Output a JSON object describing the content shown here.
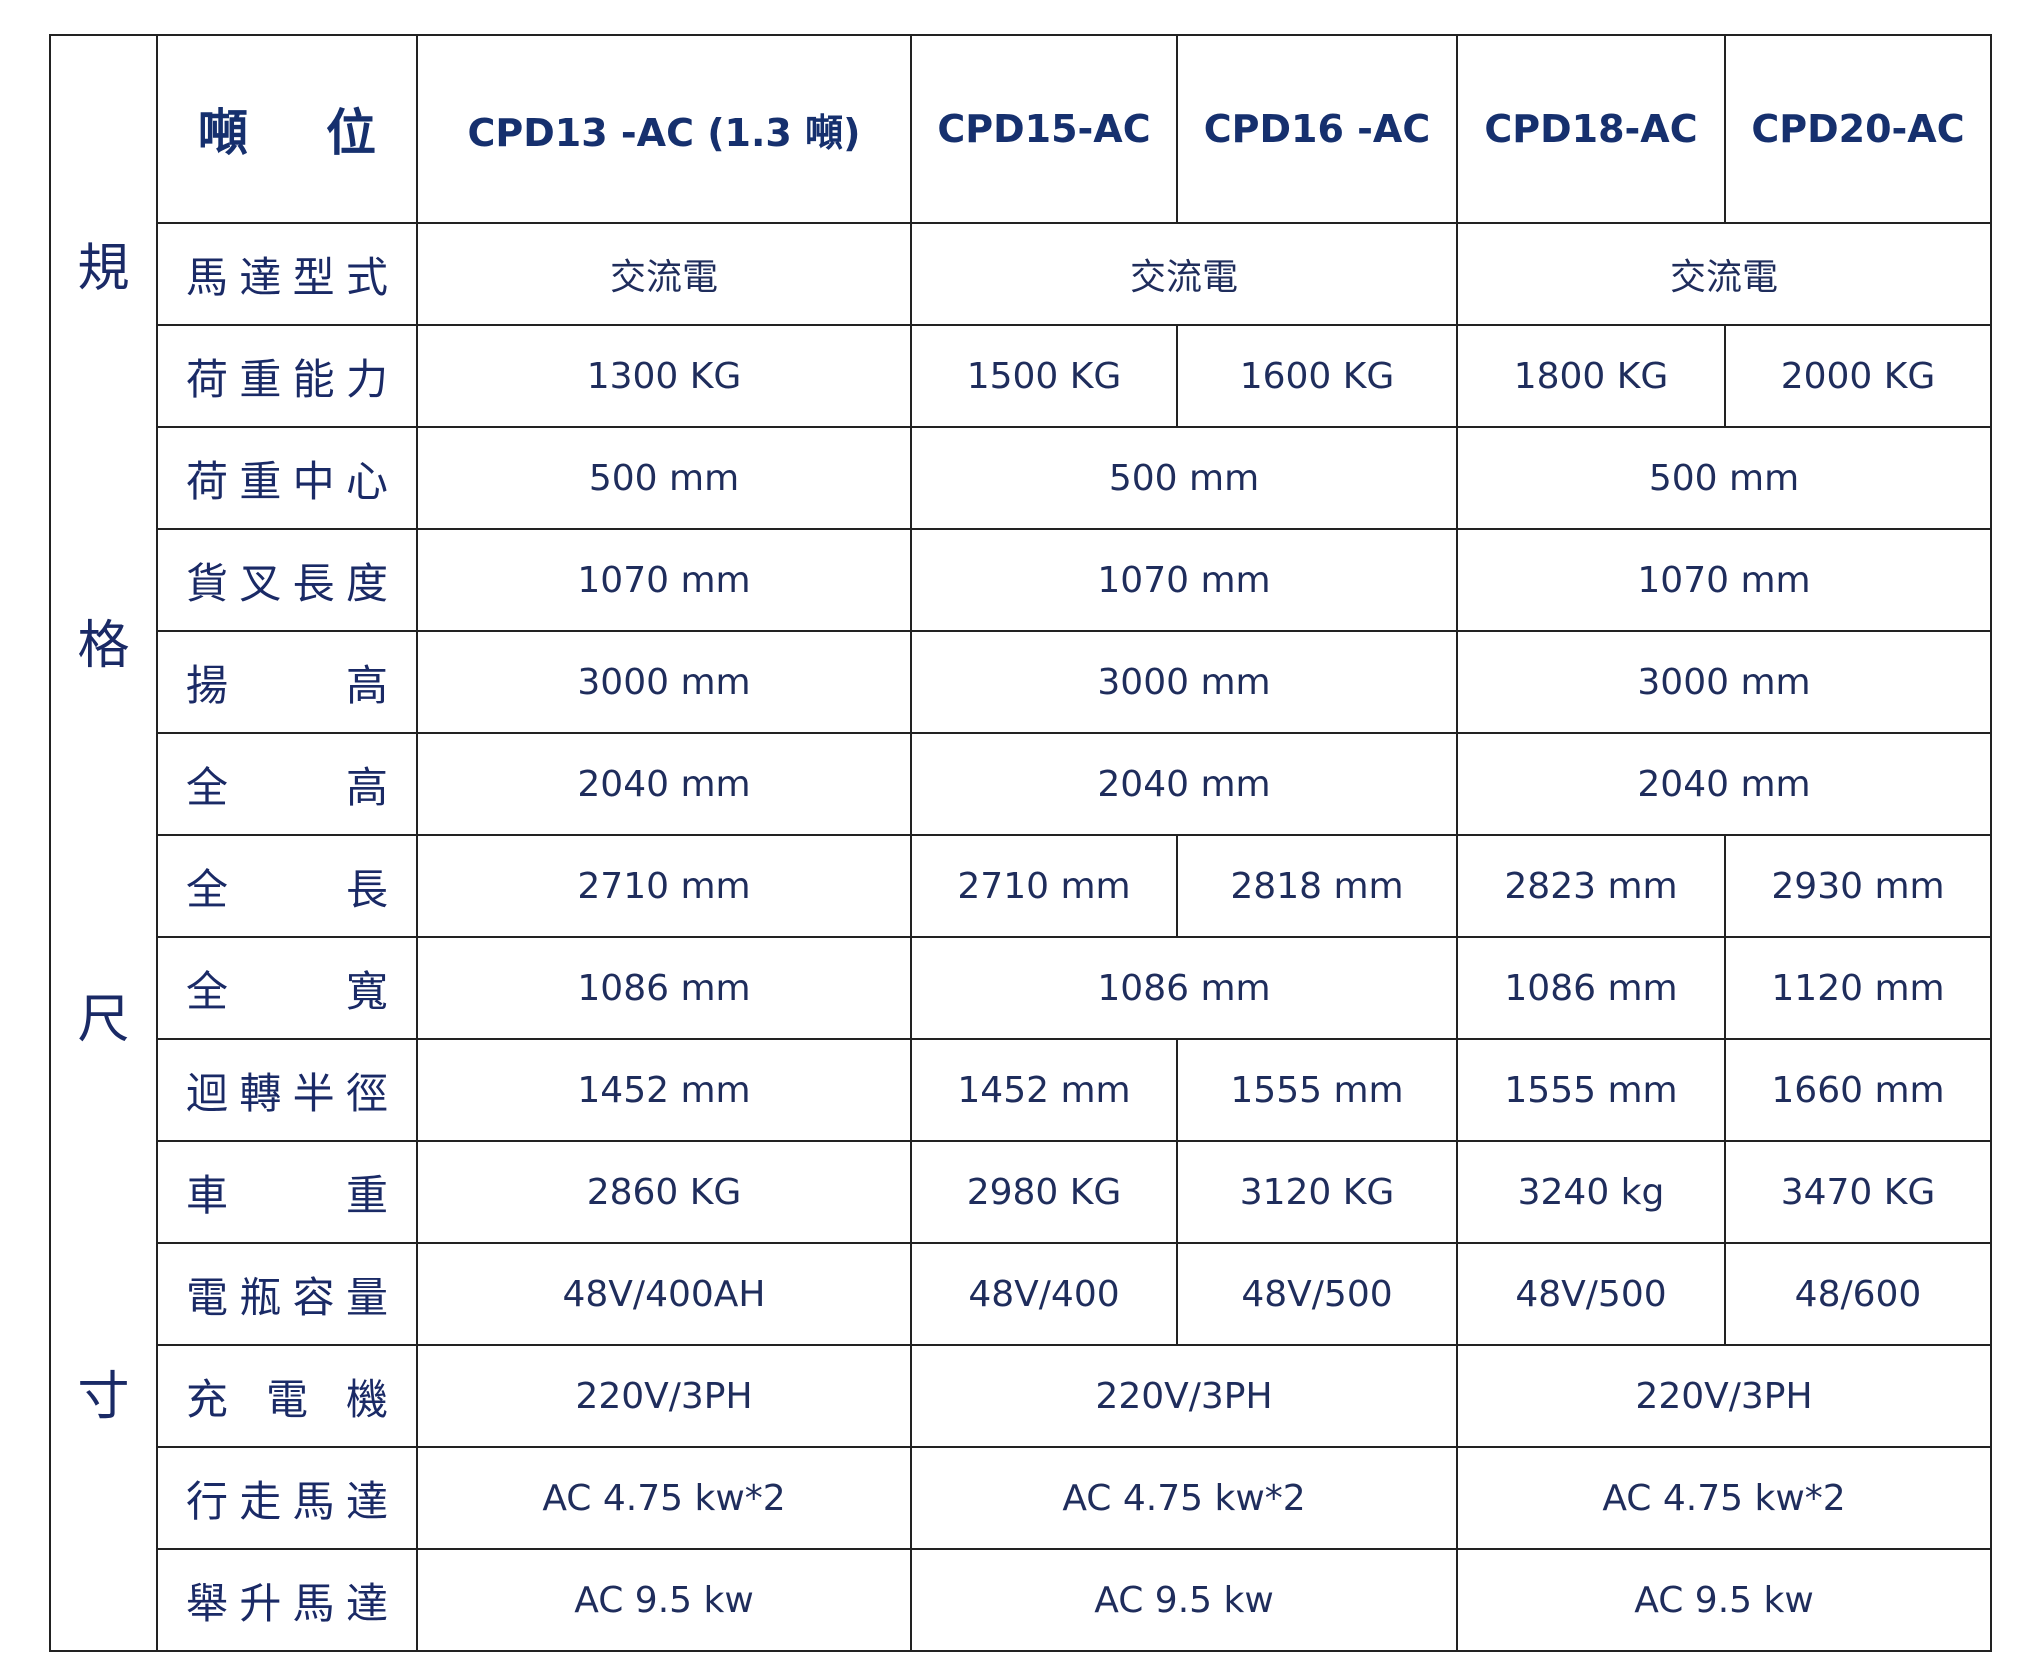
{
  "side_label": [
    "規",
    "格",
    "尺",
    "寸"
  ],
  "header": {
    "label": "噸 位",
    "models": [
      "CPD13 -AC (1.3 噸)",
      "CPD15-AC",
      "CPD16 -AC",
      "CPD18-AC",
      "CPD20-AC"
    ]
  },
  "rows": [
    {
      "label": "馬達型式",
      "cells": [
        "交流電",
        "交流電",
        "交流電"
      ]
    },
    {
      "label": "荷重能力",
      "cells": [
        "1300 KG",
        "1500 KG",
        "1600 KG",
        "1800 KG",
        "2000 KG"
      ]
    },
    {
      "label": "荷重中心",
      "cells": [
        "500 mm",
        "500 mm",
        "500 mm"
      ]
    },
    {
      "label": "貨叉長度",
      "cells": [
        "1070 mm",
        "1070 mm",
        "1070 mm"
      ]
    },
    {
      "label": "揚 高",
      "cells": [
        "3000 mm",
        "3000 mm",
        "3000 mm"
      ]
    },
    {
      "label": "全 高",
      "cells": [
        "2040 mm",
        "2040 mm",
        "2040 mm"
      ]
    },
    {
      "label": "全 長",
      "cells": [
        "2710 mm",
        "2710 mm",
        "2818 mm",
        "2823 mm",
        "2930 mm"
      ]
    },
    {
      "label": "全 寬",
      "cells": [
        "1086 mm",
        "1086 mm",
        "1086 mm",
        "1120 mm"
      ]
    },
    {
      "label": "迴轉半徑",
      "cells": [
        "1452 mm",
        "1452 mm",
        "1555 mm",
        "1555 mm",
        "1660 mm"
      ]
    },
    {
      "label": "車 重",
      "cells": [
        "2860 KG",
        "2980 KG",
        "3120 KG",
        "3240 kg",
        "3470 KG"
      ]
    },
    {
      "label": "電瓶容量",
      "cells": [
        "48V/400AH",
        "48V/400",
        "48V/500",
        "48V/500",
        "48/600"
      ]
    },
    {
      "label": "充 電 機",
      "cells": [
        "220V/3PH",
        "220V/3PH",
        "220V/3PH"
      ]
    },
    {
      "label": "行走馬達",
      "cells": [
        "AC 4.75 kw*2",
        "AC 4.75 kw*2",
        "AC 4.75 kw*2"
      ]
    },
    {
      "label": "舉升馬達",
      "cells": [
        "AC 9.5 kw",
        "AC 9.5 kw",
        "AC 9.5 kw"
      ]
    }
  ]
}
